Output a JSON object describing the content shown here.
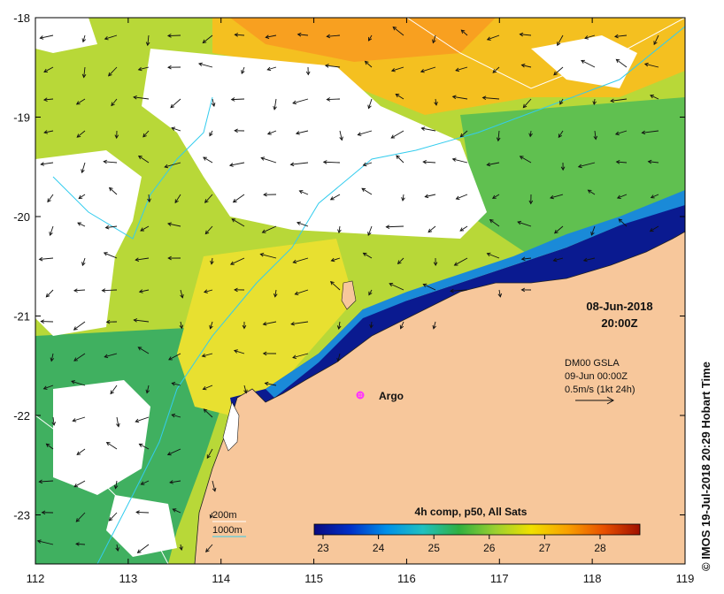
{
  "map": {
    "lon_ticks": [
      "112",
      "113",
      "114",
      "115",
      "116",
      "117",
      "118",
      "119"
    ],
    "lat_ticks": [
      "-18",
      "-19",
      "-20",
      "-21",
      "-22",
      "-23"
    ],
    "land_color": "#f7c79b",
    "no_data_color": "#ffffff"
  },
  "date": {
    "line1": "08-Jun-2018",
    "line2": "20:00Z"
  },
  "current_legend": {
    "line1": "DM00 GSLA",
    "line2": "09-Jun 00:00Z",
    "line3": "0.5m/s (1kt 24h)"
  },
  "argo": {
    "label": "Argo",
    "color": "#ff33ff"
  },
  "isobaths": [
    {
      "label": "200m",
      "color": "#ffffff"
    },
    {
      "label": "1000m",
      "color": "#33ccee"
    }
  ],
  "colorbar": {
    "title": "4h comp, p50, All Sats",
    "ticks": [
      "23",
      "24",
      "25",
      "26",
      "27",
      "28"
    ],
    "colors": [
      "#0a0a80",
      "#0030c8",
      "#0090e8",
      "#20c0c0",
      "#30b040",
      "#9ad030",
      "#f0e000",
      "#f8a000",
      "#e85000",
      "#a01000"
    ]
  },
  "credit": "© IMOS 19-Jul-2018 20:29 Hobart Time"
}
